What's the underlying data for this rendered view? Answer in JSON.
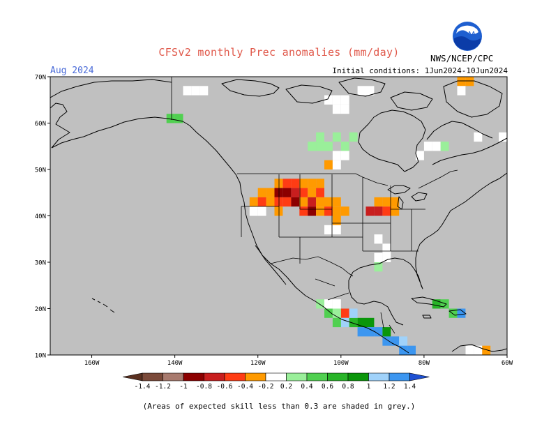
{
  "title": "CFSv2 monthly Prec anomalies (mm/day)",
  "month": "Aug 2024",
  "initial_conditions": "Initial conditions: 1Jun2024-10Jun2024",
  "agency": "NWS/NCEP/CPC",
  "logo_text": "NOAA",
  "footnote": "(Areas of expected skill less than 0.3 are shaded in grey.)",
  "map": {
    "lon_range": [
      -170,
      -60
    ],
    "lat_range": [
      10,
      70
    ],
    "background_color": "#c0c0c0",
    "lat_ticks": [
      {
        "value": 70,
        "label": "70N"
      },
      {
        "value": 60,
        "label": "60N"
      },
      {
        "value": 50,
        "label": "50N"
      },
      {
        "value": 40,
        "label": "40N"
      },
      {
        "value": 30,
        "label": "30N"
      },
      {
        "value": 20,
        "label": "20N"
      },
      {
        "value": 10,
        "label": "10N"
      }
    ],
    "lon_ticks": [
      {
        "value": -160,
        "label": "160W"
      },
      {
        "value": -140,
        "label": "140W"
      },
      {
        "value": -120,
        "label": "120W"
      },
      {
        "value": -100,
        "label": "100W"
      },
      {
        "value": -80,
        "label": "80W"
      },
      {
        "value": -60,
        "label": "60W"
      }
    ]
  },
  "legend": {
    "bins": [
      {
        "color": "#7b4a3a",
        "upper": "-1.2"
      },
      {
        "color": "#a87a6e",
        "upper": "-1"
      },
      {
        "color": "#8c0000",
        "upper": "-0.8"
      },
      {
        "color": "#c81e1e",
        "upper": "-0.6"
      },
      {
        "color": "#ff3c14",
        "upper": "-0.4"
      },
      {
        "color": "#ff9a00",
        "upper": "-0.2"
      },
      {
        "color": "#ffffff",
        "upper": "0.2"
      },
      {
        "color": "#9aef9a",
        "upper": "0.4"
      },
      {
        "color": "#50d050",
        "upper": "0.6"
      },
      {
        "color": "#28b428",
        "upper": "0.8"
      },
      {
        "color": "#0a960a",
        "upper": "1"
      },
      {
        "color": "#a0d2fa",
        "upper": "1.2"
      },
      {
        "color": "#3c96f0",
        "upper": "1.4"
      }
    ],
    "low_end_label": "-1.4",
    "low_triangle_color": "#5a3020",
    "high_triangle_color": "#1e50d2"
  },
  "chart_data": {
    "type": "heatmap",
    "title": "CFSv2 monthly Prec anomalies (mm/day)",
    "xlabel": "",
    "ylabel": "",
    "xlim": [
      -170,
      -60
    ],
    "ylim": [
      10,
      70
    ],
    "cell_size_deg": 2,
    "note": "",
    "cells": [
      {
        "lon": -137,
        "lat": 67,
        "v": 0
      },
      {
        "lon": -135,
        "lat": 67,
        "v": 0
      },
      {
        "lon": -133,
        "lat": 67,
        "v": 0
      },
      {
        "lon": -103,
        "lat": 65,
        "v": 0
      },
      {
        "lon": -101,
        "lat": 65,
        "v": 0
      },
      {
        "lon": -99,
        "lat": 65,
        "v": 0
      },
      {
        "lon": -101,
        "lat": 63,
        "v": 0
      },
      {
        "lon": -99,
        "lat": 63,
        "v": 0
      },
      {
        "lon": -95,
        "lat": 67,
        "v": 0
      },
      {
        "lon": -93,
        "lat": 67,
        "v": 0
      },
      {
        "lon": -71,
        "lat": 69,
        "v": -0.3
      },
      {
        "lon": -69,
        "lat": 69,
        "v": -0.3
      },
      {
        "lon": -71,
        "lat": 67,
        "v": 0
      },
      {
        "lon": -141,
        "lat": 61,
        "v": 0.5
      },
      {
        "lon": -139,
        "lat": 61,
        "v": 0.5
      },
      {
        "lon": -107,
        "lat": 55,
        "v": 0.3
      },
      {
        "lon": -105,
        "lat": 55,
        "v": 0.3
      },
      {
        "lon": -103,
        "lat": 55,
        "v": 0.3
      },
      {
        "lon": -105,
        "lat": 57,
        "v": 0.3
      },
      {
        "lon": -101,
        "lat": 57,
        "v": 0.3
      },
      {
        "lon": -97,
        "lat": 57,
        "v": 0.3
      },
      {
        "lon": -99,
        "lat": 55,
        "v": 0.3
      },
      {
        "lon": -99,
        "lat": 53,
        "v": 0
      },
      {
        "lon": -101,
        "lat": 53,
        "v": 0
      },
      {
        "lon": -103,
        "lat": 51,
        "v": -0.3
      },
      {
        "lon": -101,
        "lat": 51,
        "v": 0
      },
      {
        "lon": -79,
        "lat": 55,
        "v": 0
      },
      {
        "lon": -77,
        "lat": 55,
        "v": 0
      },
      {
        "lon": -67,
        "lat": 57,
        "v": 0
      },
      {
        "lon": -61,
        "lat": 57,
        "v": 0
      },
      {
        "lon": -81,
        "lat": 53,
        "v": 0
      },
      {
        "lon": -75,
        "lat": 55,
        "v": 0.3
      },
      {
        "lon": -115,
        "lat": 47,
        "v": -0.3
      },
      {
        "lon": -113,
        "lat": 47,
        "v": -0.5
      },
      {
        "lon": -111,
        "lat": 47,
        "v": -0.5
      },
      {
        "lon": -109,
        "lat": 47,
        "v": -0.3
      },
      {
        "lon": -107,
        "lat": 47,
        "v": -0.3
      },
      {
        "lon": -105,
        "lat": 47,
        "v": -0.3
      },
      {
        "lon": -115,
        "lat": 45,
        "v": -0.9
      },
      {
        "lon": -113,
        "lat": 45,
        "v": -0.9
      },
      {
        "lon": -111,
        "lat": 45,
        "v": -0.7
      },
      {
        "lon": -109,
        "lat": 45,
        "v": -0.5
      },
      {
        "lon": -107,
        "lat": 45,
        "v": -0.3
      },
      {
        "lon": -105,
        "lat": 45,
        "v": -0.5
      },
      {
        "lon": -119,
        "lat": 45,
        "v": -0.3
      },
      {
        "lon": -117,
        "lat": 45,
        "v": -0.3
      },
      {
        "lon": -121,
        "lat": 43,
        "v": -0.3
      },
      {
        "lon": -119,
        "lat": 43,
        "v": -0.5
      },
      {
        "lon": -117,
        "lat": 43,
        "v": -0.3
      },
      {
        "lon": -115,
        "lat": 43,
        "v": -0.5
      },
      {
        "lon": -113,
        "lat": 43,
        "v": -0.5
      },
      {
        "lon": -111,
        "lat": 43,
        "v": -0.9
      },
      {
        "lon": -109,
        "lat": 43,
        "v": -0.3
      },
      {
        "lon": -107,
        "lat": 43,
        "v": -0.7
      },
      {
        "lon": -105,
        "lat": 43,
        "v": -0.3
      },
      {
        "lon": -103,
        "lat": 43,
        "v": -0.3
      },
      {
        "lon": -101,
        "lat": 43,
        "v": -0.3
      },
      {
        "lon": -109,
        "lat": 41,
        "v": -0.5
      },
      {
        "lon": -107,
        "lat": 41,
        "v": -0.9
      },
      {
        "lon": -105,
        "lat": 41,
        "v": -0.3
      },
      {
        "lon": -103,
        "lat": 41,
        "v": -0.5
      },
      {
        "lon": -101,
        "lat": 41,
        "v": -0.3
      },
      {
        "lon": -99,
        "lat": 41,
        "v": -0.3
      },
      {
        "lon": -115,
        "lat": 41,
        "v": -0.3
      },
      {
        "lon": -121,
        "lat": 41,
        "v": 0
      },
      {
        "lon": -119,
        "lat": 41,
        "v": 0
      },
      {
        "lon": -91,
        "lat": 43,
        "v": -0.3
      },
      {
        "lon": -89,
        "lat": 43,
        "v": -0.3
      },
      {
        "lon": -87,
        "lat": 43,
        "v": -0.3
      },
      {
        "lon": -93,
        "lat": 41,
        "v": -0.7
      },
      {
        "lon": -91,
        "lat": 41,
        "v": -0.7
      },
      {
        "lon": -89,
        "lat": 41,
        "v": -0.5
      },
      {
        "lon": -87,
        "lat": 41,
        "v": -0.3
      },
      {
        "lon": -101,
        "lat": 39,
        "v": -0.3
      },
      {
        "lon": -103,
        "lat": 37,
        "v": 0
      },
      {
        "lon": -101,
        "lat": 37,
        "v": 0
      },
      {
        "lon": -91,
        "lat": 35,
        "v": 0
      },
      {
        "lon": -89,
        "lat": 33,
        "v": 0
      },
      {
        "lon": -91,
        "lat": 31,
        "v": 0
      },
      {
        "lon": -89,
        "lat": 31,
        "v": 0
      },
      {
        "lon": -91,
        "lat": 29,
        "v": 0.3
      },
      {
        "lon": -105,
        "lat": 21,
        "v": 0.3
      },
      {
        "lon": -103,
        "lat": 21,
        "v": 0
      },
      {
        "lon": -101,
        "lat": 21,
        "v": 0
      },
      {
        "lon": -99,
        "lat": 19,
        "v": -0.5
      },
      {
        "lon": -103,
        "lat": 19,
        "v": 0.5
      },
      {
        "lon": -101,
        "lat": 19,
        "v": 0.3
      },
      {
        "lon": -99,
        "lat": 17,
        "v": 1.1
      },
      {
        "lon": -97,
        "lat": 17,
        "v": 0.7
      },
      {
        "lon": -95,
        "lat": 17,
        "v": 0.9
      },
      {
        "lon": -93,
        "lat": 17,
        "v": 0.9
      },
      {
        "lon": -101,
        "lat": 17,
        "v": 0.5
      },
      {
        "lon": -97,
        "lat": 19,
        "v": 1.1
      },
      {
        "lon": -95,
        "lat": 15,
        "v": 1.3
      },
      {
        "lon": -93,
        "lat": 15,
        "v": 1.3
      },
      {
        "lon": -91,
        "lat": 15,
        "v": 1.3
      },
      {
        "lon": -89,
        "lat": 13,
        "v": 1.3
      },
      {
        "lon": -87,
        "lat": 13,
        "v": 1.3
      },
      {
        "lon": -85,
        "lat": 13,
        "v": 1.1
      },
      {
        "lon": -85,
        "lat": 11,
        "v": 1.3
      },
      {
        "lon": -83,
        "lat": 11,
        "v": 1.3
      },
      {
        "lon": -89,
        "lat": 15,
        "v": 0.9
      },
      {
        "lon": -77,
        "lat": 21,
        "v": 0.7
      },
      {
        "lon": -75,
        "lat": 21,
        "v": 0.5
      },
      {
        "lon": -73,
        "lat": 19,
        "v": 0.5
      },
      {
        "lon": -71,
        "lat": 19,
        "v": 1.3
      },
      {
        "lon": -69,
        "lat": 11,
        "v": 0
      },
      {
        "lon": -67,
        "lat": 11,
        "v": 0
      },
      {
        "lon": -65,
        "lat": 11,
        "v": -0.3
      }
    ]
  }
}
